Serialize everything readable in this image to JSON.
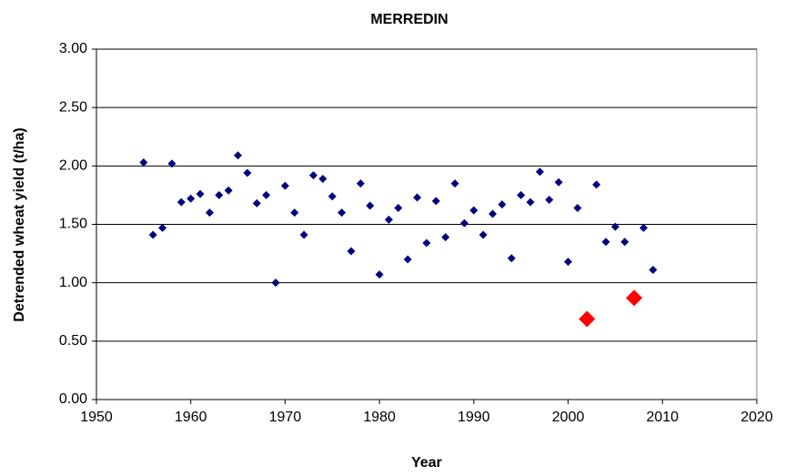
{
  "chart_data": {
    "type": "scatter",
    "title": "MERREDIN",
    "x_label": "Year",
    "y_label": "Detrended wheat yield (t/ha)",
    "xlim": [
      1950,
      2020
    ],
    "xticks": [
      1950,
      1960,
      1970,
      1980,
      1990,
      2000,
      2010,
      2020
    ],
    "ylim": [
      0,
      3
    ],
    "yticks": [
      {
        "value": 0,
        "label": "0.00"
      },
      {
        "value": 0.5,
        "label": "0.50"
      },
      {
        "value": 1,
        "label": "1.00"
      },
      {
        "value": 1.5,
        "label": "1.50"
      },
      {
        "value": 2,
        "label": "2.00"
      },
      {
        "value": 2.5,
        "label": "2.50"
      },
      {
        "value": 3,
        "label": "3.00"
      }
    ],
    "grid": true,
    "marker": "diamond",
    "series": [
      {
        "color": "#00007f",
        "highlight": false,
        "x": [
          1955,
          1956,
          1957,
          1958,
          1959,
          1960,
          1961,
          1962,
          1963,
          1964,
          1965,
          1966,
          1967,
          1968,
          1969,
          1970,
          1971,
          1972,
          1973,
          1974,
          1975,
          1976,
          1977,
          1978,
          1979,
          1980,
          1981,
          1982,
          1983,
          1984,
          1985,
          1986,
          1987,
          1988,
          1989,
          1990,
          1991,
          1992,
          1993,
          1994,
          1995,
          1996,
          1997,
          1998,
          1999,
          2000,
          2001,
          2003,
          2004,
          2005,
          2006,
          2008,
          2009
        ],
        "values": [
          2.03,
          1.41,
          1.47,
          2.02,
          1.69,
          1.72,
          1.76,
          1.6,
          1.75,
          1.79,
          2.09,
          1.94,
          1.68,
          1.75,
          1.0,
          1.83,
          1.6,
          1.41,
          1.92,
          1.89,
          1.74,
          1.6,
          1.27,
          1.85,
          1.66,
          1.07,
          1.54,
          1.64,
          1.2,
          1.73,
          1.34,
          1.7,
          1.39,
          1.85,
          1.51,
          1.62,
          1.41,
          1.59,
          1.67,
          1.21,
          1.75,
          1.69,
          1.95,
          1.71,
          1.86,
          1.18,
          1.64,
          1.84,
          1.35,
          1.48,
          1.35,
          1.47,
          1.11
        ]
      },
      {
        "color": "#ff0000",
        "highlight": true,
        "x": [
          2002,
          2007
        ],
        "values": [
          0.69,
          0.87
        ]
      }
    ]
  }
}
